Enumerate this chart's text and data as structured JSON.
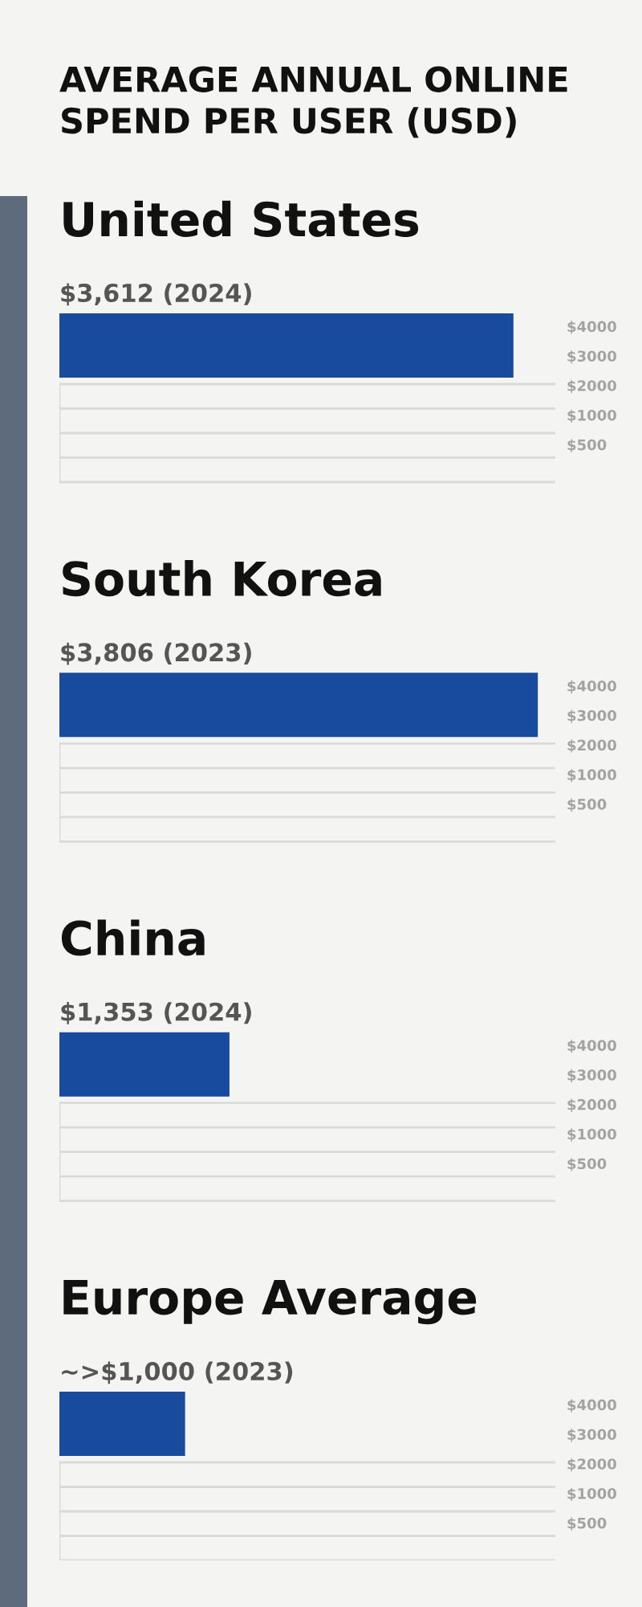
{
  "chart_data": {
    "type": "bar",
    "orientation": "horizontal",
    "title": "AVERAGE ANNUAL ONLINE SPEND PER USER (USD)",
    "categories": [
      "United States",
      "South Korea",
      "China",
      "Europe Average"
    ],
    "values": [
      3612,
      3806,
      1353,
      1000
    ],
    "value_labels": [
      "$3,612 (2024)",
      "$3,806 (2023)",
      "$1,353 (2024)",
      "~>$1,000 (2023)"
    ],
    "color": "#184a9e",
    "tick_labels": "y",
    "grid": "y",
    "annotations": [
      "$4000",
      "$3000",
      "$2000",
      "$1000",
      "$500",
      "$4000",
      "$3000",
      "$2000",
      "$1000",
      "$500",
      "$4000",
      "$3000",
      "$2000",
      "$1000",
      "$500",
      "$4000",
      "$3000",
      "$2000",
      "$1000",
      "$500"
    ]
  }
}
